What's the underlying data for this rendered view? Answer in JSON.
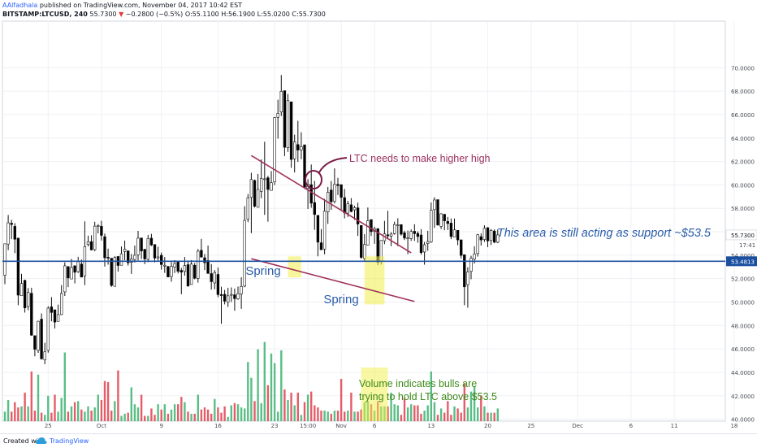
{
  "header": {
    "author": "AAlfadhala",
    "published": "published on TradingView.com, November 04, 2017 10:42 EST",
    "symbol": "BITSTAMP:LTCUSD, 240",
    "last": "55.7300",
    "change_arrow": "▼",
    "change": "−0.2800 (−0.5%)",
    "ohlc": "O:55.1100 H:56.1900 L:55.0200 C:55.7300"
  },
  "footer": {
    "created_with": "Created with",
    "brand": "TradingView"
  },
  "colors": {
    "up": "#2b2b2b",
    "down": "#000000",
    "vol_up": "#3cb371",
    "vol_down": "#e0414f",
    "trend": "#a0325a",
    "support": "#1a4fa0",
    "highlight": "#f2ef4a",
    "annot_blue": "#2a5caa",
    "annot_purple": "#9c2f5e",
    "annot_green": "#3d8a1a"
  },
  "chart_data": {
    "type": "candlestick",
    "title": "",
    "y_axis": {
      "range": [
        39.0,
        71.0
      ],
      "ticks": [
        "70.0000",
        "68.0000",
        "66.0000",
        "64.0000",
        "62.0000",
        "60.0000",
        "58.0000",
        "56.0000",
        "54.0000",
        "52.0000",
        "50.0000",
        "48.0000",
        "46.0000",
        "44.0000",
        "42.0000",
        "40.0000"
      ],
      "last_price_label": "55.7300",
      "countdown_label": "17:41",
      "support_label": "53.4813"
    },
    "x_axis": {
      "labels": [
        "25",
        "Oct",
        "9",
        "16",
        "23",
        "15:00",
        "Nov",
        "6",
        "13",
        "20",
        "25",
        "Dec",
        "6",
        "11",
        "18"
      ],
      "label_index": [
        13,
        29,
        47,
        64,
        81,
        91,
        101,
        111,
        128,
        145,
        158,
        172,
        188,
        201,
        219
      ]
    },
    "grid": true,
    "support_level": 53.4813,
    "series_key": "4h candles: [open, high, low, close, volume]",
    "candles": [
      [
        52.29,
        54.97,
        51.53,
        54.97,
        0.9
      ],
      [
        54.95,
        57.43,
        54.43,
        56.76,
        2.0
      ],
      [
        56.73,
        57.02,
        55.37,
        56.62,
        0.9
      ],
      [
        56.46,
        56.73,
        54.17,
        55.36,
        1.8
      ],
      [
        55.46,
        55.46,
        49.73,
        50.59,
        1.3
      ],
      [
        50.54,
        52.41,
        50.54,
        51.58,
        1.4
      ],
      [
        51.85,
        51.91,
        49.1,
        49.5,
        2.7
      ],
      [
        49.62,
        51.19,
        49.3,
        50.81,
        1.4
      ],
      [
        50.75,
        51.22,
        47.11,
        47.17,
        4.7
      ],
      [
        47.13,
        47.13,
        45.37,
        45.97,
        1.0
      ],
      [
        45.88,
        48.4,
        45.66,
        48.36,
        4.4
      ],
      [
        48.54,
        49.03,
        45.09,
        45.15,
        0.8
      ],
      [
        45.07,
        46.52,
        44.69,
        45.75,
        0.6
      ],
      [
        45.87,
        49.64,
        45.68,
        49.48,
        2.4
      ],
      [
        49.59,
        50.42,
        48.36,
        49.11,
        0.8
      ],
      [
        49.34,
        49.34,
        47.74,
        48.29,
        2.5
      ],
      [
        48.35,
        49.78,
        48.35,
        48.93,
        0.9
      ],
      [
        48.93,
        51.45,
        48.89,
        50.73,
        2.2
      ],
      [
        50.87,
        53.39,
        50.52,
        53.09,
        6.5
      ],
      [
        53.03,
        53.03,
        51.27,
        52.06,
        0.9
      ],
      [
        51.97,
        53.69,
        51.94,
        52.95,
        1.4
      ],
      [
        53.1,
        53.11,
        51.59,
        52.54,
        1.8
      ],
      [
        52.6,
        53.86,
        52.48,
        53.44,
        1.9
      ],
      [
        53.24,
        53.63,
        52.13,
        52.13,
        1.1
      ],
      [
        52.23,
        56.89,
        51.44,
        54.73,
        0.9
      ],
      [
        54.92,
        55.66,
        54.74,
        55.15,
        1.4
      ],
      [
        55.16,
        55.7,
        54.41,
        54.45,
        1.0
      ],
      [
        54.47,
        56.85,
        54.34,
        56.48,
        1.3
      ],
      [
        56.52,
        56.65,
        55.86,
        56.52,
        2.5
      ],
      [
        56.47,
        56.94,
        55.25,
        55.69,
        2.0
      ],
      [
        55.58,
        55.85,
        53.03,
        53.78,
        3.8
      ],
      [
        53.83,
        54.56,
        53.19,
        53.75,
        3.7
      ],
      [
        53.74,
        53.74,
        51.29,
        51.42,
        1.0
      ],
      [
        51.34,
        53.91,
        51.34,
        53.8,
        1.9
      ],
      [
        53.89,
        53.89,
        52.6,
        53.12,
        4.8
      ],
      [
        53.14,
        54.74,
        53.14,
        54.12,
        0.5
      ],
      [
        54.31,
        55.25,
        53.57,
        54.51,
        0.7
      ],
      [
        54.37,
        54.37,
        53.11,
        53.35,
        0.8
      ],
      [
        53.39,
        54.11,
        52.4,
        53.67,
        3.2
      ],
      [
        53.63,
        54.82,
        53.38,
        53.99,
        1.6
      ],
      [
        54.03,
        56.07,
        53.56,
        55.45,
        1.3
      ],
      [
        55.47,
        55.47,
        53.67,
        54.36,
        2.5
      ],
      [
        54.5,
        54.54,
        53.23,
        53.68,
        0.5
      ],
      [
        53.64,
        55.73,
        53.4,
        55.43,
        0.5
      ],
      [
        55.45,
        55.82,
        54.78,
        54.87,
        1.2
      ],
      [
        54.91,
        54.91,
        53.39,
        53.75,
        0.6
      ],
      [
        53.77,
        54.72,
        53.53,
        53.85,
        1.6
      ],
      [
        53.99,
        54.22,
        52.77,
        53.2,
        1.1
      ],
      [
        53.14,
        53.84,
        52.49,
        53.14,
        1.6
      ],
      [
        53.03,
        53.09,
        52.14,
        52.14,
        0.7
      ],
      [
        52.18,
        53.42,
        51.73,
        53.04,
        1.1
      ],
      [
        52.98,
        53.58,
        52.48,
        53.29,
        1.6
      ],
      [
        53.41,
        53.48,
        52.44,
        52.63,
        1.6
      ],
      [
        52.7,
        52.91,
        50.67,
        52.55,
        2.3
      ],
      [
        52.61,
        53.85,
        52.25,
        53.11,
        1.8
      ],
      [
        53.19,
        53.51,
        51.31,
        51.37,
        0.9
      ],
      [
        51.5,
        53.58,
        51.5,
        53.24,
        0.7
      ],
      [
        53.14,
        53.33,
        51.94,
        52.03,
        0.7
      ],
      [
        52.02,
        54.53,
        51.66,
        54.34,
        2.5
      ],
      [
        54.42,
        55.39,
        53.83,
        53.83,
        1.1
      ],
      [
        53.78,
        54.1,
        52.73,
        53.36,
        1.3
      ],
      [
        53.54,
        54.82,
        52.44,
        52.44,
        1.1
      ],
      [
        52.43,
        53.24,
        51.06,
        51.74,
        0.7
      ],
      [
        51.63,
        52.73,
        51.09,
        52.52,
        2.1
      ],
      [
        52.36,
        52.95,
        50.42,
        50.64,
        1.3
      ],
      [
        50.64,
        51.31,
        48.14,
        50.55,
        0.8
      ],
      [
        50.66,
        51.04,
        49.8,
        50.07,
        1.4
      ],
      [
        49.98,
        51.22,
        49.58,
        50.53,
        0.4
      ],
      [
        50.63,
        51.25,
        50.01,
        50.65,
        1.5
      ],
      [
        50.62,
        51.15,
        49.26,
        50.29,
        1.7
      ],
      [
        50.27,
        51.32,
        50.18,
        50.71,
        1.6
      ],
      [
        50.7,
        52.11,
        49.42,
        51.33,
        1.3
      ],
      [
        51.36,
        58.18,
        51.26,
        56.97,
        1.2
      ],
      [
        57.06,
        59.22,
        56.82,
        58.9,
        5.6
      ],
      [
        58.93,
        61.03,
        55.88,
        60.46,
        4.1
      ],
      [
        60.38,
        60.45,
        58.07,
        58.17,
        1.9
      ],
      [
        58.09,
        60.93,
        58.07,
        59.61,
        6.8
      ],
      [
        59.45,
        62.17,
        58.86,
        60.54,
        1.7
      ],
      [
        60.46,
        63.68,
        57.44,
        60.52,
        7.5
      ],
      [
        60.61,
        60.77,
        56.86,
        59.61,
        3.4
      ],
      [
        59.53,
        61.18,
        59.53,
        60.19,
        6.4
      ],
      [
        60.25,
        65.8,
        59.98,
        65.74,
        5.5
      ],
      [
        65.77,
        67.27,
        63.95,
        66.11,
        0.9
      ],
      [
        66.22,
        69.38,
        65.88,
        67.98,
        6.7
      ],
      [
        68.04,
        68.04,
        62.45,
        63.21,
        3.0
      ],
      [
        63.17,
        67.76,
        62.82,
        67.19,
        2.0
      ],
      [
        67.09,
        67.09,
        61.46,
        62.17,
        2.7
      ],
      [
        62.22,
        64.29,
        61.06,
        63.67,
        1.5
      ],
      [
        63.44,
        65.47,
        61.96,
        62.97,
        2.7
      ],
      [
        62.99,
        64.49,
        62.19,
        63.27,
        0.6
      ],
      [
        63.42,
        63.42,
        59.65,
        59.79,
        1.8
      ],
      [
        59.7,
        60.49,
        57.95,
        60.06,
        2.5
      ],
      [
        60.02,
        61.74,
        58.05,
        58.44,
        2.8
      ],
      [
        58.49,
        60.34,
        56.17,
        57.47,
        1.5
      ],
      [
        57.4,
        57.4,
        53.9,
        55.11,
        1.3
      ],
      [
        55.06,
        56.23,
        54.46,
        54.46,
        1.0
      ],
      [
        54.52,
        58.81,
        54.08,
        57.75,
        1.0
      ],
      [
        57.69,
        59.83,
        56.67,
        59.37,
        0.9
      ],
      [
        59.56,
        60.33,
        57.87,
        58.56,
        0.7
      ],
      [
        58.59,
        61.41,
        58.41,
        60.04,
        1.0
      ],
      [
        60.04,
        60.6,
        59.13,
        59.94,
        1.0
      ],
      [
        60.02,
        60.02,
        57.83,
        58.94,
        4.0
      ],
      [
        58.91,
        59.65,
        57.14,
        57.61,
        0.9
      ],
      [
        57.59,
        58.64,
        57.26,
        58.39,
        1.0
      ],
      [
        58.3,
        58.87,
        57.66,
        57.72,
        2.7
      ],
      [
        57.87,
        58.21,
        57.02,
        58.06,
        0.9
      ],
      [
        58.04,
        58.48,
        55.64,
        56.66,
        0.9
      ],
      [
        56.54,
        56.54,
        53.69,
        53.81,
        1.1
      ],
      [
        53.72,
        55.8,
        53.48,
        54.92,
        1.8
      ],
      [
        54.86,
        58.07,
        54.84,
        56.94,
        1.9
      ],
      [
        57.04,
        57.04,
        55.64,
        56.01,
        1.6
      ],
      [
        56.04,
        56.43,
        54.97,
        56.25,
        1.0
      ],
      [
        56.27,
        56.27,
        53.15,
        53.4,
        1.9
      ],
      [
        53.46,
        55.26,
        53.21,
        55.26,
        1.4
      ],
      [
        55.23,
        56.93,
        54.94,
        55.82,
        1.4
      ],
      [
        55.74,
        57.79,
        55.45,
        55.65,
        1.4
      ],
      [
        55.63,
        55.96,
        54.77,
        55.8,
        2.7
      ],
      [
        55.84,
        56.86,
        55.75,
        56.62,
        1.6
      ],
      [
        56.59,
        57.15,
        54.77,
        56.59,
        1.5
      ],
      [
        56.61,
        56.61,
        55.67,
        55.79,
        0.6
      ],
      [
        55.91,
        56.09,
        55.29,
        55.46,
        2.2
      ],
      [
        55.4,
        56.1,
        54.09,
        55.47,
        1.3
      ],
      [
        55.42,
        56.2,
        55.22,
        56.02,
        1.6
      ],
      [
        56.04,
        56.64,
        55.22,
        55.84,
        1.5
      ],
      [
        55.86,
        56.04,
        55.06,
        55.59,
        1.5
      ],
      [
        55.72,
        56.23,
        54.05,
        54.22,
        0.7
      ],
      [
        54.27,
        55.13,
        53.19,
        54.89,
        1.0
      ],
      [
        54.99,
        56.08,
        54.37,
        55.16,
        1.5
      ],
      [
        55.13,
        58.5,
        55.05,
        57.84,
        4.7
      ],
      [
        57.89,
        58.94,
        56.33,
        58.71,
        1.8
      ],
      [
        58.74,
        58.74,
        56.51,
        56.58,
        0.6
      ],
      [
        56.46,
        57.58,
        56.23,
        57.53,
        1.2
      ],
      [
        57.49,
        57.53,
        56.13,
        56.93,
        0.8
      ],
      [
        56.88,
        57.26,
        56.15,
        56.7,
        1.9
      ],
      [
        56.74,
        57.14,
        55.37,
        55.59,
        0.6
      ],
      [
        55.56,
        57.13,
        55.56,
        56.16,
        1.4
      ],
      [
        56.12,
        56.14,
        54.85,
        55.3,
        1.2
      ],
      [
        55.31,
        55.31,
        53.72,
        53.98,
        0.8
      ],
      [
        54.04,
        54.04,
        49.73,
        51.3,
        3.6
      ],
      [
        51.49,
        52.97,
        49.52,
        52.57,
        1.3
      ],
      [
        52.62,
        53.95,
        51.95,
        53.73,
        2.8
      ],
      [
        53.66,
        54.76,
        53.28,
        54.09,
        3.3
      ],
      [
        54.14,
        55.82,
        53.88,
        55.74,
        1.3
      ],
      [
        55.58,
        55.86,
        54.82,
        55.3,
        2.4
      ],
      [
        55.34,
        56.55,
        55.13,
        56.29,
        1.4
      ],
      [
        56.35,
        56.38,
        54.69,
        55.22,
        0.8
      ],
      [
        55.25,
        56.23,
        54.87,
        56.12,
        0.8
      ],
      [
        56.06,
        56.2,
        55.02,
        55.11,
        0.8
      ],
      [
        55.11,
        56.19,
        55.02,
        55.73,
        1.2
      ]
    ],
    "trendlines": [
      {
        "name": "upper",
        "x": [
          74,
          122
        ],
        "y": [
          62.5,
          54.2
        ]
      },
      {
        "name": "lower",
        "x": [
          74,
          123
        ],
        "y": [
          53.7,
          50.05
        ]
      }
    ],
    "highlight_zones": [
      {
        "x": [
          85,
          89
        ],
        "y": [
          52.1,
          53.9
        ]
      },
      {
        "x": [
          108,
          114
        ],
        "y": [
          49.8,
          53.9
        ]
      }
    ],
    "annotations": {
      "support_text": "This area is still acting as support ~$53.5",
      "spring_1": "Spring",
      "spring_2": "Spring",
      "higher_high": "LTC needs to make higher high",
      "volume_line_1": "Volume indicates bulls are",
      "volume_line_2": "trying to hold LTC above $53.5"
    }
  }
}
